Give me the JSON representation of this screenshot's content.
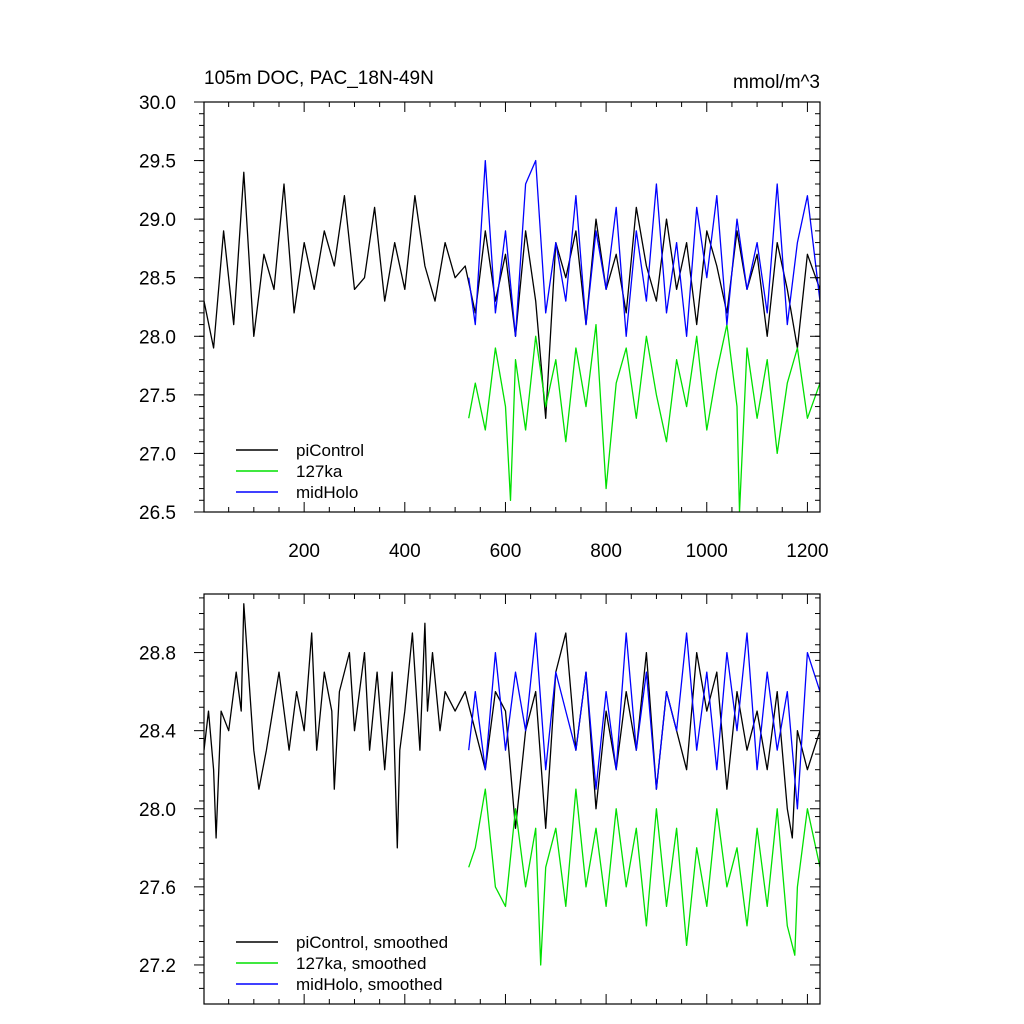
{
  "chart_data": [
    {
      "type": "line",
      "title": "105m DOC, PAC_18N-49N",
      "units": "mmol/m^3",
      "xlabel": "",
      "ylabel": "",
      "xlim": [
        1,
        1225
      ],
      "ylim": [
        26.5,
        30.0
      ],
      "xticks": [
        200,
        400,
        600,
        800,
        1000,
        1200
      ],
      "xtick_labels": [
        "200",
        "400",
        "600",
        "800",
        "1000",
        "1200"
      ],
      "yticks": [
        26.5,
        27.0,
        27.5,
        28.0,
        28.5,
        29.0,
        29.5,
        30.0
      ],
      "ytick_labels": [
        "26.5",
        "27.0",
        "27.5",
        "28.0",
        "28.5",
        "29.0",
        "29.5",
        "30.0"
      ],
      "grid": false,
      "legend_position": "bottom-left",
      "series": [
        {
          "name": "piControl",
          "color": "#000000",
          "x": [
            1,
            20,
            40,
            60,
            80,
            100,
            120,
            140,
            160,
            180,
            200,
            220,
            240,
            260,
            280,
            300,
            320,
            340,
            360,
            380,
            400,
            420,
            440,
            460,
            480,
            500,
            520,
            540,
            560,
            580,
            600,
            620,
            640,
            660,
            680,
            700,
            720,
            740,
            760,
            780,
            800,
            820,
            840,
            860,
            880,
            900,
            920,
            940,
            960,
            980,
            1000,
            1020,
            1040,
            1060,
            1080,
            1100,
            1120,
            1140,
            1160,
            1180,
            1200,
            1225
          ],
          "y": [
            28.3,
            27.9,
            28.9,
            28.1,
            29.4,
            28.0,
            28.7,
            28.4,
            29.3,
            28.2,
            28.8,
            28.4,
            28.9,
            28.6,
            29.2,
            28.4,
            28.5,
            29.1,
            28.3,
            28.8,
            28.4,
            29.2,
            28.6,
            28.3,
            28.8,
            28.5,
            28.6,
            28.2,
            28.9,
            28.3,
            28.7,
            28.0,
            28.9,
            28.3,
            27.3,
            28.8,
            28.5,
            28.9,
            28.1,
            29.0,
            28.4,
            28.7,
            28.2,
            29.1,
            28.6,
            28.3,
            29.0,
            28.4,
            28.8,
            28.1,
            28.9,
            28.6,
            28.2,
            28.9,
            28.4,
            28.7,
            28.0,
            28.8,
            28.4,
            27.9,
            28.7,
            28.4
          ]
        },
        {
          "name": "127ka",
          "color": "#00e000",
          "x": [
            527,
            540,
            560,
            580,
            600,
            610,
            620,
            640,
            660,
            680,
            700,
            720,
            740,
            760,
            780,
            800,
            820,
            840,
            860,
            880,
            900,
            920,
            940,
            960,
            980,
            1000,
            1020,
            1040,
            1060,
            1065,
            1080,
            1100,
            1120,
            1140,
            1160,
            1180,
            1200,
            1225
          ],
          "y": [
            27.3,
            27.6,
            27.2,
            27.9,
            27.4,
            26.6,
            27.8,
            27.2,
            28.0,
            27.4,
            27.8,
            27.1,
            27.9,
            27.4,
            28.1,
            26.7,
            27.6,
            27.9,
            27.3,
            28.0,
            27.5,
            27.1,
            27.8,
            27.4,
            28.0,
            27.2,
            27.7,
            28.1,
            27.4,
            26.5,
            27.9,
            27.3,
            27.8,
            27.0,
            27.6,
            27.9,
            27.3,
            27.6
          ]
        },
        {
          "name": "midHolo",
          "color": "#0000ff",
          "x": [
            527,
            540,
            560,
            580,
            600,
            620,
            640,
            660,
            680,
            700,
            720,
            740,
            760,
            780,
            800,
            820,
            840,
            860,
            880,
            900,
            920,
            940,
            960,
            980,
            1000,
            1020,
            1040,
            1060,
            1080,
            1100,
            1120,
            1140,
            1160,
            1180,
            1200,
            1225
          ],
          "y": [
            28.5,
            28.1,
            29.5,
            28.2,
            28.9,
            28.0,
            29.3,
            29.5,
            28.2,
            28.8,
            28.3,
            29.2,
            28.1,
            28.9,
            28.4,
            29.1,
            28.0,
            28.9,
            28.3,
            29.3,
            28.2,
            28.8,
            28.0,
            29.1,
            28.5,
            29.2,
            28.1,
            29.0,
            28.4,
            28.8,
            28.2,
            29.3,
            28.1,
            28.8,
            29.2,
            28.3
          ]
        }
      ]
    },
    {
      "type": "line",
      "title": "",
      "xlabel": "",
      "ylabel": "",
      "xlim": [
        1,
        1225
      ],
      "ylim": [
        27.0,
        29.1
      ],
      "xticks": [
        200,
        400,
        600,
        800,
        1000,
        1200
      ],
      "yticks": [
        27.2,
        27.6,
        28.0,
        28.4,
        28.8
      ],
      "ytick_labels": [
        "27.2",
        "27.6",
        "28.0",
        "28.4",
        "28.8"
      ],
      "grid": false,
      "legend_position": "bottom-left",
      "series": [
        {
          "name": "piControl, smoothed",
          "color": "#000000",
          "x": [
            1,
            10,
            20,
            25,
            35,
            50,
            65,
            75,
            80,
            100,
            110,
            125,
            150,
            170,
            185,
            200,
            215,
            225,
            240,
            255,
            260,
            270,
            290,
            300,
            320,
            330,
            345,
            360,
            375,
            385,
            390,
            400,
            415,
            430,
            440,
            445,
            455,
            470,
            480,
            500,
            520,
            540,
            560,
            580,
            600,
            620,
            640,
            660,
            680,
            700,
            720,
            740,
            760,
            780,
            800,
            820,
            840,
            860,
            880,
            900,
            920,
            940,
            960,
            980,
            1000,
            1020,
            1040,
            1060,
            1080,
            1100,
            1120,
            1140,
            1160,
            1170,
            1180,
            1200,
            1225
          ],
          "y": [
            28.3,
            28.5,
            28.2,
            27.85,
            28.5,
            28.4,
            28.7,
            28.5,
            29.05,
            28.3,
            28.1,
            28.3,
            28.7,
            28.3,
            28.6,
            28.4,
            28.9,
            28.3,
            28.7,
            28.5,
            28.1,
            28.6,
            28.8,
            28.4,
            28.8,
            28.3,
            28.7,
            28.2,
            28.7,
            27.8,
            28.3,
            28.5,
            28.9,
            28.3,
            28.95,
            28.5,
            28.8,
            28.4,
            28.6,
            28.5,
            28.6,
            28.4,
            28.2,
            28.6,
            28.5,
            27.9,
            28.4,
            28.6,
            27.9,
            28.7,
            28.9,
            28.3,
            28.7,
            28.0,
            28.5,
            28.2,
            28.6,
            28.3,
            28.8,
            28.1,
            28.6,
            28.4,
            28.2,
            28.8,
            28.5,
            28.7,
            28.1,
            28.6,
            28.3,
            28.5,
            28.2,
            28.6,
            28.0,
            27.85,
            28.4,
            28.2,
            28.4
          ]
        },
        {
          "name": "127ka, smoothed",
          "color": "#00e000",
          "x": [
            527,
            540,
            560,
            580,
            600,
            620,
            640,
            660,
            670,
            680,
            700,
            720,
            740,
            760,
            780,
            800,
            820,
            840,
            860,
            880,
            900,
            920,
            940,
            960,
            980,
            1000,
            1020,
            1040,
            1060,
            1080,
            1100,
            1120,
            1140,
            1160,
            1175,
            1180,
            1200,
            1225
          ],
          "y": [
            27.7,
            27.8,
            28.1,
            27.6,
            27.5,
            28.0,
            27.6,
            27.9,
            27.2,
            27.7,
            27.9,
            27.5,
            28.1,
            27.6,
            27.9,
            27.5,
            28.0,
            27.6,
            27.9,
            27.4,
            28.0,
            27.5,
            27.9,
            27.3,
            27.8,
            27.5,
            28.0,
            27.6,
            27.8,
            27.4,
            27.9,
            27.5,
            28.0,
            27.4,
            27.25,
            27.6,
            28.0,
            27.7
          ]
        },
        {
          "name": "midHolo, smoothed",
          "color": "#0000ff",
          "x": [
            527,
            540,
            560,
            580,
            600,
            620,
            640,
            660,
            680,
            700,
            720,
            740,
            760,
            780,
            800,
            820,
            840,
            860,
            880,
            900,
            920,
            940,
            960,
            980,
            1000,
            1020,
            1040,
            1060,
            1080,
            1100,
            1120,
            1140,
            1160,
            1180,
            1200,
            1225
          ],
          "y": [
            28.3,
            28.6,
            28.2,
            28.8,
            28.3,
            28.7,
            28.4,
            28.9,
            28.2,
            28.7,
            28.5,
            28.3,
            28.7,
            28.1,
            28.6,
            28.2,
            28.9,
            28.3,
            28.7,
            28.1,
            28.6,
            28.4,
            28.9,
            28.3,
            28.7,
            28.2,
            28.8,
            28.4,
            28.9,
            28.2,
            28.7,
            28.3,
            28.6,
            28.0,
            28.8,
            28.6
          ]
        }
      ]
    }
  ]
}
